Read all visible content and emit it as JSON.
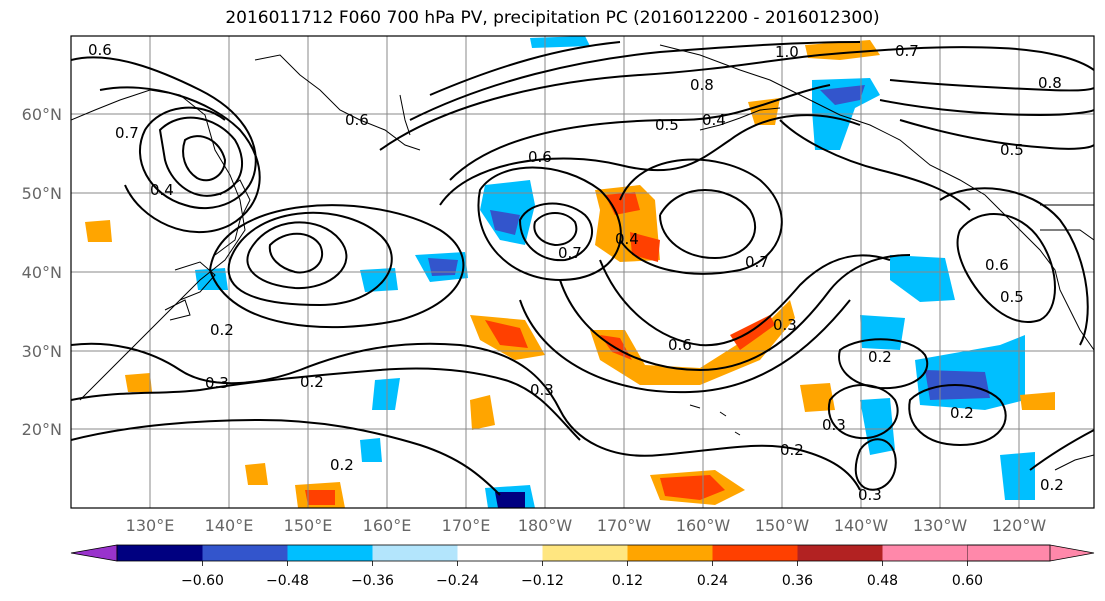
{
  "title": "2016011712 F060 700 hPa PV, precipitation PC (2016012200 - 2016012300)",
  "lat_labels": [
    "60°N",
    "50°N",
    "40°N",
    "30°N",
    "20°N"
  ],
  "lon_labels": [
    "130°E",
    "140°E",
    "150°E",
    "160°E",
    "170°E",
    "180°W",
    "170°W",
    "160°W",
    "150°W",
    "140°W",
    "130°W",
    "120°W"
  ],
  "contour_labels": [
    "0.6",
    "1.0",
    "0.7",
    "0.8",
    "0.5",
    "0.6",
    "0.8",
    "0.4",
    "0.5",
    "0.6",
    "0.7",
    "0.4",
    "0.7",
    "0.6",
    "0.7",
    "0.5",
    "0.4",
    "0.6",
    "0.3",
    "0.2",
    "0.3",
    "0.2",
    "0.3",
    "0.2",
    "0.2",
    "0.3",
    "0.2",
    "0.2",
    "0.3",
    "0.2"
  ],
  "colorbar": {
    "colors": [
      "#9933cc",
      "#000080",
      "#3355cc",
      "#00bfff",
      "#b3e5fc",
      "#ffffff",
      "#ffe680",
      "#ffa500",
      "#ff4000",
      "#b22222",
      "#ff88aa"
    ],
    "tick_labels": [
      "−0.60",
      "−0.48",
      "−0.36",
      "−0.24",
      "−0.12",
      "0.12",
      "0.24",
      "0.36",
      "0.48",
      "0.60"
    ]
  }
}
